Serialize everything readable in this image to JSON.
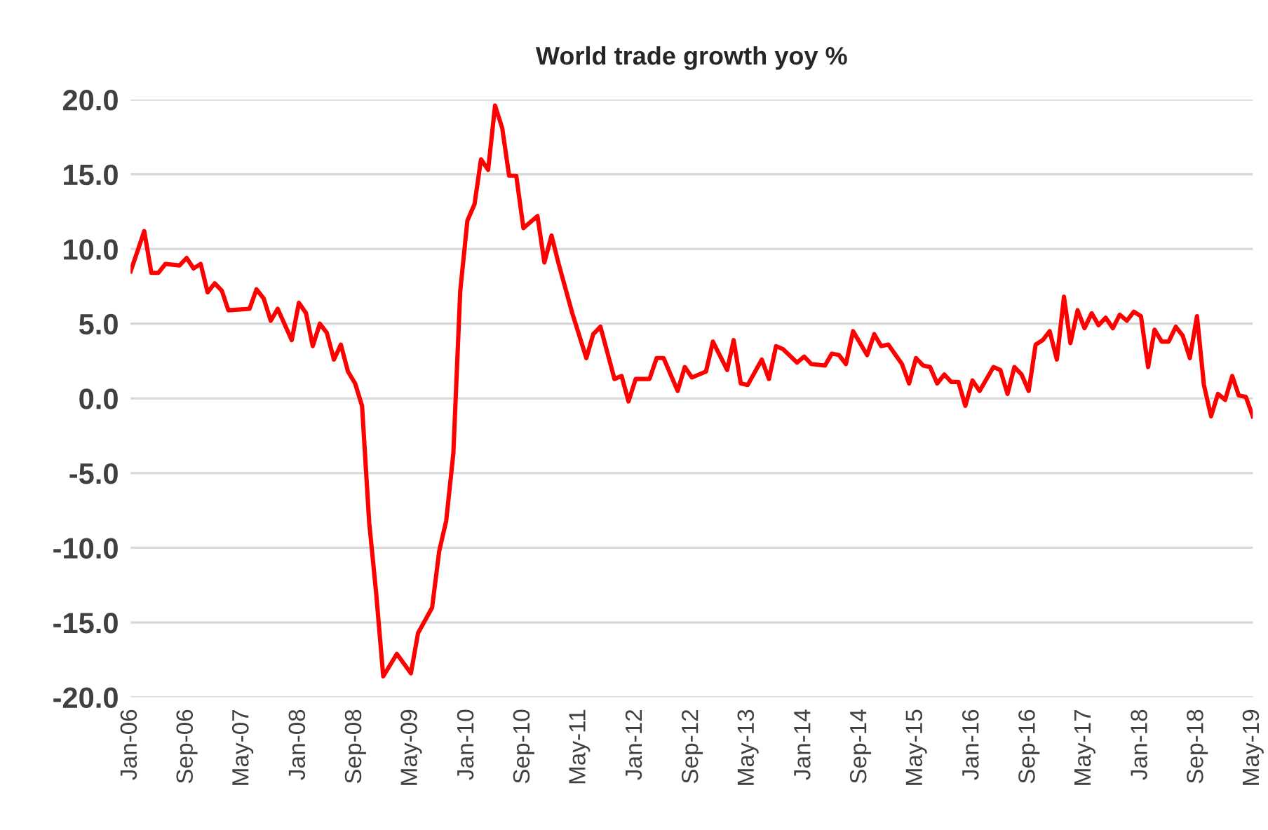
{
  "chart_data": {
    "type": "line",
    "title": "World trade growth yoy %",
    "x": [
      "2006-01",
      "2006-02",
      "2006-03",
      "2006-04",
      "2006-05",
      "2006-06",
      "2006-08",
      "2006-09",
      "2006-10",
      "2006-11",
      "2006-12",
      "2007-01",
      "2007-02",
      "2007-03",
      "2007-06",
      "2007-07",
      "2007-08",
      "2007-09",
      "2007-10",
      "2007-12",
      "2008-01",
      "2008-02",
      "2008-03",
      "2008-04",
      "2008-05",
      "2008-06",
      "2008-07",
      "2008-08",
      "2008-09",
      "2008-10",
      "2008-11",
      "2008-12",
      "2009-01",
      "2009-03",
      "2009-05",
      "2009-06",
      "2009-08",
      "2009-09",
      "2009-10",
      "2009-11",
      "2009-12",
      "2010-01",
      "2010-02",
      "2010-03",
      "2010-04",
      "2010-05",
      "2010-06",
      "2010-07",
      "2010-08",
      "2010-09",
      "2010-11",
      "2010-12",
      "2011-01",
      "2011-02",
      "2011-04",
      "2011-06",
      "2011-07",
      "2011-08",
      "2011-10",
      "2011-11",
      "2011-12",
      "2012-01",
      "2012-03",
      "2012-04",
      "2012-05",
      "2012-07",
      "2012-08",
      "2012-09",
      "2012-11",
      "2012-12",
      "2013-02",
      "2013-03",
      "2013-04",
      "2013-05",
      "2013-07",
      "2013-08",
      "2013-09",
      "2013-10",
      "2013-12",
      "2014-01",
      "2014-02",
      "2014-04",
      "2014-05",
      "2014-06",
      "2014-07",
      "2014-08",
      "2014-10",
      "2014-11",
      "2014-12",
      "2015-01",
      "2015-03",
      "2015-04",
      "2015-05",
      "2015-06",
      "2015-07",
      "2015-08",
      "2015-09",
      "2015-10",
      "2015-11",
      "2015-12",
      "2016-01",
      "2016-02",
      "2016-04",
      "2016-05",
      "2016-06",
      "2016-07",
      "2016-08",
      "2016-09",
      "2016-10",
      "2016-11",
      "2016-12",
      "2017-01",
      "2017-02",
      "2017-03",
      "2017-04",
      "2017-05",
      "2017-06",
      "2017-07",
      "2017-08",
      "2017-09",
      "2017-10",
      "2017-11",
      "2017-12",
      "2018-01",
      "2018-02",
      "2018-03",
      "2018-04",
      "2018-05",
      "2018-06",
      "2018-07",
      "2018-08",
      "2018-09",
      "2018-10",
      "2018-11",
      "2018-12",
      "2019-01",
      "2019-02",
      "2019-03",
      "2019-04",
      "2019-05"
    ],
    "series": [
      {
        "color": "#ff0000",
        "values": [
          8.5,
          9.9,
          11.2,
          8.4,
          8.4,
          9.0,
          8.9,
          9.4,
          8.7,
          9.0,
          7.1,
          7.7,
          7.2,
          5.9,
          6.0,
          7.3,
          6.7,
          5.2,
          6.0,
          3.9,
          6.4,
          5.7,
          3.5,
          5.0,
          4.4,
          2.6,
          3.6,
          1.8,
          1.0,
          -0.5,
          -8.3,
          -13.0,
          -18.6,
          -17.1,
          -18.4,
          -15.7,
          -14.0,
          -10.2,
          -8.2,
          -3.7,
          7.2,
          11.9,
          13.0,
          16.0,
          15.3,
          19.6,
          18.1,
          14.9,
          14.9,
          11.4,
          12.2,
          9.1,
          10.9,
          9.0,
          5.7,
          2.7,
          4.3,
          4.8,
          1.3,
          1.5,
          -0.2,
          1.3,
          1.3,
          2.7,
          2.7,
          0.5,
          2.1,
          1.4,
          1.8,
          3.8,
          1.9,
          3.9,
          1.0,
          0.9,
          2.6,
          1.3,
          3.5,
          3.3,
          2.4,
          2.8,
          2.3,
          2.2,
          3.0,
          2.9,
          2.3,
          4.5,
          2.9,
          4.3,
          3.5,
          3.6,
          2.3,
          1.0,
          2.7,
          2.2,
          2.1,
          1.0,
          1.6,
          1.1,
          1.1,
          -0.5,
          1.2,
          0.5,
          2.1,
          1.9,
          0.3,
          2.1,
          1.6,
          0.5,
          3.6,
          3.9,
          4.5,
          2.6,
          6.8,
          3.7,
          5.9,
          4.7,
          5.7,
          4.9,
          5.4,
          4.7,
          5.6,
          5.2,
          5.8,
          5.5,
          2.1,
          4.6,
          3.8,
          3.8,
          4.8,
          4.2,
          2.7,
          5.5,
          0.9,
          -1.2,
          0.3,
          -0.1,
          1.5,
          0.2,
          0.1,
          -1.2
        ]
      }
    ],
    "xlim": [
      "2006-01",
      "2019-05"
    ],
    "xticks": [
      {
        "value": "2006-01",
        "label": "Jan-06"
      },
      {
        "value": "2006-09",
        "label": "Sep-06"
      },
      {
        "value": "2007-05",
        "label": "May-07"
      },
      {
        "value": "2008-01",
        "label": "Jan-08"
      },
      {
        "value": "2008-09",
        "label": "Sep-08"
      },
      {
        "value": "2009-05",
        "label": "May-09"
      },
      {
        "value": "2010-01",
        "label": "Jan-10"
      },
      {
        "value": "2010-09",
        "label": "Sep-10"
      },
      {
        "value": "2011-05",
        "label": "May-11"
      },
      {
        "value": "2012-01",
        "label": "Jan-12"
      },
      {
        "value": "2012-09",
        "label": "Sep-12"
      },
      {
        "value": "2013-05",
        "label": "May-13"
      },
      {
        "value": "2014-01",
        "label": "Jan-14"
      },
      {
        "value": "2014-09",
        "label": "Sep-14"
      },
      {
        "value": "2015-05",
        "label": "May-15"
      },
      {
        "value": "2016-01",
        "label": "Jan-16"
      },
      {
        "value": "2016-09",
        "label": "Sep-16"
      },
      {
        "value": "2017-05",
        "label": "May-17"
      },
      {
        "value": "2018-01",
        "label": "Jan-18"
      },
      {
        "value": "2018-09",
        "label": "Sep-18"
      },
      {
        "value": "2019-05",
        "label": "May-19"
      }
    ],
    "ylim": [
      -20,
      20
    ],
    "yticks": [
      {
        "value": -20,
        "label": "-20.0"
      },
      {
        "value": -15,
        "label": "-15.0"
      },
      {
        "value": -10,
        "label": "-10.0"
      },
      {
        "value": -5,
        "label": "-5.0"
      },
      {
        "value": 0,
        "label": "0.0"
      },
      {
        "value": 5,
        "label": "5.0"
      },
      {
        "value": 10,
        "label": "10.0"
      },
      {
        "value": 15,
        "label": "15.0"
      },
      {
        "value": 20,
        "label": "20.0"
      }
    ],
    "grid": "y",
    "legend": false,
    "marker": "none",
    "line_style": "solid"
  }
}
